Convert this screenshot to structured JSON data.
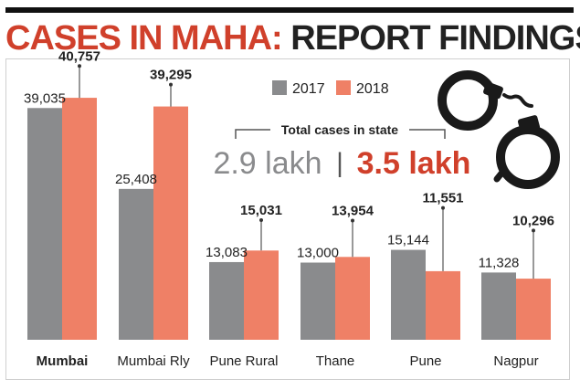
{
  "header": {
    "title_colored": "CASES IN MAHA:",
    "title_dark": "REPORT FINDINGS"
  },
  "total_box": {
    "label": "Total cases in state",
    "value_2017": "2.9 lakh",
    "separator": "|",
    "value_2018": "3.5 lakh"
  },
  "colors": {
    "series_2017": "#8a8b8d",
    "series_2018": "#ef8066",
    "accent": "#d0402b",
    "dark": "#222222"
  },
  "icons": {
    "decoration": "handcuffs-icon"
  },
  "chart_data": {
    "type": "bar",
    "categories": [
      "Mumbai",
      "Mumbai Rly",
      "Pune Rural",
      "Thane",
      "Pune",
      "Nagpur"
    ],
    "series": [
      {
        "name": "2017",
        "values": [
          39035,
          25408,
          13083,
          13000,
          15144,
          11328
        ],
        "labels": [
          "39,035",
          "25,408",
          "13,083",
          "13,000",
          "15,144",
          "11,328"
        ]
      },
      {
        "name": "2018",
        "values": [
          40757,
          39295,
          15031,
          13954,
          11551,
          10296
        ],
        "labels": [
          "40,757",
          "39,295",
          "15,031",
          "13,954",
          "11,551",
          "10,296"
        ]
      }
    ],
    "ylim": [
      0,
      48000
    ],
    "grid": false,
    "legend": "top-center",
    "bold_category": "Mumbai"
  }
}
